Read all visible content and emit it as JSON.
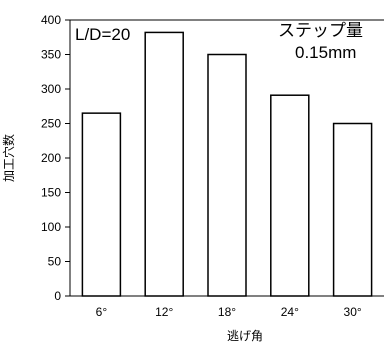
{
  "chart_data": {
    "type": "bar",
    "categories": [
      "6°",
      "12°",
      "18°",
      "24°",
      "30°"
    ],
    "values": [
      265,
      382,
      350,
      291,
      250
    ],
    "xlabel": "逃げ角",
    "ylabel": "加工穴数",
    "ylim": [
      0,
      400
    ],
    "yticks": [
      0,
      50,
      100,
      150,
      200,
      250,
      300,
      350,
      400
    ],
    "grid": false,
    "legend": "none",
    "bar_fill": "#ffffff",
    "bar_stroke": "#000000",
    "annotations": {
      "left": "L/D=20",
      "right_line1": "ステップ量",
      "right_line2": "0.15mm"
    }
  }
}
